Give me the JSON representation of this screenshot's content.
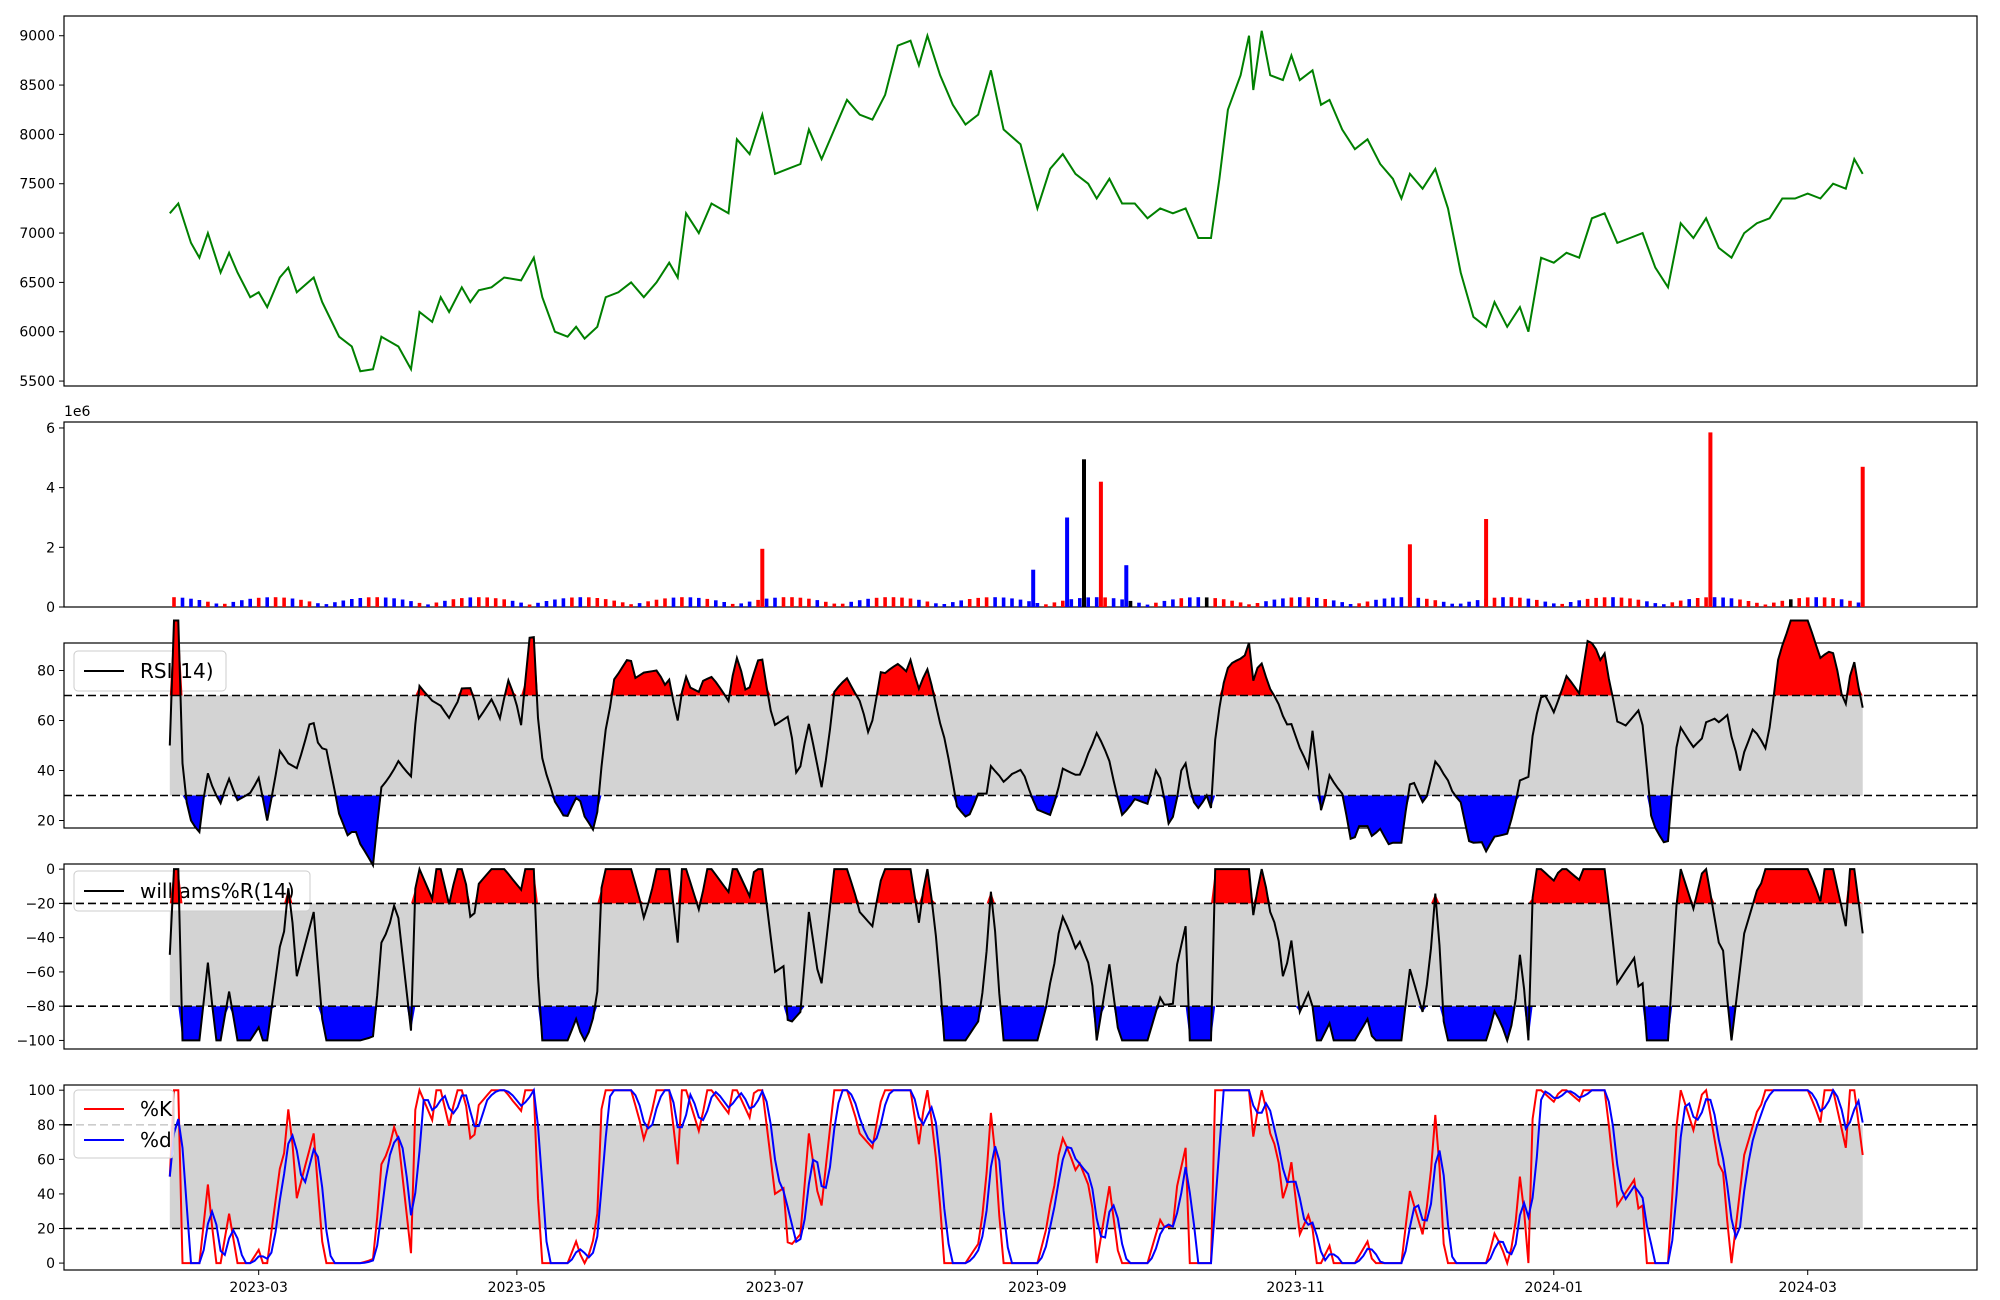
{
  "chart_data": [
    {
      "type": "line",
      "panel": "price",
      "color": "#008000",
      "ylim": [
        5450,
        9200
      ],
      "yticks": [
        5500,
        6000,
        6500,
        7000,
        7500,
        8000,
        8500,
        9000
      ],
      "ytick_labels": [
        "5500",
        "6000",
        "6500",
        "7000",
        "7500",
        "8000",
        "8500",
        "9000"
      ],
      "series": [
        {
          "points": [
            [
              "2023-02-08",
              7200
            ],
            [
              "2023-02-10",
              7300
            ],
            [
              "2023-02-13",
              6900
            ],
            [
              "2023-02-15",
              6750
            ],
            [
              "2023-02-17",
              7000
            ],
            [
              "2023-02-20",
              6600
            ],
            [
              "2023-02-22",
              6800
            ],
            [
              "2023-02-24",
              6600
            ],
            [
              "2023-02-27",
              6350
            ],
            [
              "2023-03-01",
              6400
            ],
            [
              "2023-03-03",
              6250
            ],
            [
              "2023-03-06",
              6550
            ],
            [
              "2023-03-08",
              6650
            ],
            [
              "2023-03-10",
              6400
            ],
            [
              "2023-03-14",
              6550
            ],
            [
              "2023-03-16",
              6300
            ],
            [
              "2023-03-20",
              5950
            ],
            [
              "2023-03-23",
              5850
            ],
            [
              "2023-03-25",
              5600
            ],
            [
              "2023-03-28",
              5620
            ],
            [
              "2023-03-30",
              5950
            ],
            [
              "2023-04-03",
              5850
            ],
            [
              "2023-04-06",
              5620
            ],
            [
              "2023-04-08",
              6200
            ],
            [
              "2023-04-11",
              6100
            ],
            [
              "2023-04-13",
              6350
            ],
            [
              "2023-04-15",
              6200
            ],
            [
              "2023-04-18",
              6450
            ],
            [
              "2023-04-20",
              6300
            ],
            [
              "2023-04-22",
              6420
            ],
            [
              "2023-04-25",
              6450
            ],
            [
              "2023-04-28",
              6550
            ],
            [
              "2023-05-02",
              6520
            ],
            [
              "2023-05-05",
              6750
            ],
            [
              "2023-05-07",
              6350
            ],
            [
              "2023-05-10",
              6000
            ],
            [
              "2023-05-13",
              5950
            ],
            [
              "2023-05-15",
              6050
            ],
            [
              "2023-05-17",
              5930
            ],
            [
              "2023-05-20",
              6050
            ],
            [
              "2023-05-22",
              6350
            ],
            [
              "2023-05-25",
              6400
            ],
            [
              "2023-05-28",
              6500
            ],
            [
              "2023-05-31",
              6350
            ],
            [
              "2023-06-03",
              6500
            ],
            [
              "2023-06-06",
              6700
            ],
            [
              "2023-06-08",
              6550
            ],
            [
              "2023-06-10",
              7200
            ],
            [
              "2023-06-13",
              7000
            ],
            [
              "2023-06-16",
              7300
            ],
            [
              "2023-06-20",
              7200
            ],
            [
              "2023-06-22",
              7950
            ],
            [
              "2023-06-25",
              7800
            ],
            [
              "2023-06-28",
              8200
            ],
            [
              "2023-07-01",
              7600
            ],
            [
              "2023-07-04",
              7650
            ],
            [
              "2023-07-07",
              7700
            ],
            [
              "2023-07-09",
              8050
            ],
            [
              "2023-07-12",
              7750
            ],
            [
              "2023-07-15",
              8050
            ],
            [
              "2023-07-18",
              8350
            ],
            [
              "2023-07-21",
              8200
            ],
            [
              "2023-07-24",
              8150
            ],
            [
              "2023-07-27",
              8400
            ],
            [
              "2023-07-30",
              8900
            ],
            [
              "2023-08-02",
              8950
            ],
            [
              "2023-08-04",
              8700
            ],
            [
              "2023-08-06",
              9000
            ],
            [
              "2023-08-09",
              8600
            ],
            [
              "2023-08-12",
              8300
            ],
            [
              "2023-08-15",
              8100
            ],
            [
              "2023-08-18",
              8200
            ],
            [
              "2023-08-21",
              8650
            ],
            [
              "2023-08-24",
              8050
            ],
            [
              "2023-08-28",
              7900
            ],
            [
              "2023-09-01",
              7250
            ],
            [
              "2023-09-04",
              7650
            ],
            [
              "2023-09-07",
              7800
            ],
            [
              "2023-09-10",
              7600
            ],
            [
              "2023-09-13",
              7500
            ],
            [
              "2023-09-15",
              7350
            ],
            [
              "2023-09-18",
              7550
            ],
            [
              "2023-09-21",
              7300
            ],
            [
              "2023-09-24",
              7300
            ],
            [
              "2023-09-27",
              7150
            ],
            [
              "2023-09-30",
              7250
            ],
            [
              "2023-10-03",
              7200
            ],
            [
              "2023-10-06",
              7250
            ],
            [
              "2023-10-09",
              6950
            ],
            [
              "2023-10-12",
              6950
            ],
            [
              "2023-10-14",
              7550
            ],
            [
              "2023-10-16",
              8250
            ],
            [
              "2023-10-19",
              8600
            ],
            [
              "2023-10-21",
              9000
            ],
            [
              "2023-10-22",
              8450
            ],
            [
              "2023-10-24",
              9050
            ],
            [
              "2023-10-26",
              8600
            ],
            [
              "2023-10-29",
              8550
            ],
            [
              "2023-10-31",
              8800
            ],
            [
              "2023-11-02",
              8550
            ],
            [
              "2023-11-05",
              8650
            ],
            [
              "2023-11-07",
              8300
            ],
            [
              "2023-11-09",
              8350
            ],
            [
              "2023-11-12",
              8050
            ],
            [
              "2023-11-15",
              7850
            ],
            [
              "2023-11-18",
              7950
            ],
            [
              "2023-11-21",
              7700
            ],
            [
              "2023-11-24",
              7550
            ],
            [
              "2023-11-26",
              7350
            ],
            [
              "2023-11-28",
              7600
            ],
            [
              "2023-12-01",
              7450
            ],
            [
              "2023-12-04",
              7650
            ],
            [
              "2023-12-07",
              7250
            ],
            [
              "2023-12-10",
              6600
            ],
            [
              "2023-12-13",
              6150
            ],
            [
              "2023-12-16",
              6050
            ],
            [
              "2023-12-18",
              6300
            ],
            [
              "2023-12-21",
              6050
            ],
            [
              "2023-12-24",
              6250
            ],
            [
              "2023-12-26",
              6000
            ],
            [
              "2023-12-29",
              6750
            ],
            [
              "2024-01-01",
              6700
            ],
            [
              "2024-01-04",
              6800
            ],
            [
              "2024-01-07",
              6750
            ],
            [
              "2024-01-10",
              7150
            ],
            [
              "2024-01-13",
              7200
            ],
            [
              "2024-01-16",
              6900
            ],
            [
              "2024-01-19",
              6950
            ],
            [
              "2024-01-22",
              7000
            ],
            [
              "2024-01-25",
              6650
            ],
            [
              "2024-01-28",
              6450
            ],
            [
              "2024-01-31",
              7100
            ],
            [
              "2024-02-03",
              6950
            ],
            [
              "2024-02-06",
              7150
            ],
            [
              "2024-02-09",
              6850
            ],
            [
              "2024-02-12",
              6750
            ],
            [
              "2024-02-15",
              7000
            ],
            [
              "2024-02-18",
              7100
            ],
            [
              "2024-02-21",
              7150
            ],
            [
              "2024-02-24",
              7350
            ],
            [
              "2024-02-27",
              7350
            ],
            [
              "2024-03-01",
              7400
            ],
            [
              "2024-03-04",
              7350
            ],
            [
              "2024-03-07",
              7500
            ],
            [
              "2024-03-10",
              7450
            ],
            [
              "2024-03-12",
              7750
            ],
            [
              "2024-03-14",
              7600
            ]
          ]
        }
      ]
    },
    {
      "type": "bar",
      "panel": "volume",
      "scale_label": "1e6",
      "ylim": [
        0,
        6.2
      ],
      "yticks": [
        0,
        2,
        4,
        6
      ],
      "ytick_labels": [
        "0",
        "2",
        "4",
        "6"
      ],
      "colors": {
        "up": "#ff0000",
        "down": "#0000ff",
        "flat": "#000000"
      }
    },
    {
      "type": "line",
      "panel": "rsi",
      "legend": "RSI(14)",
      "ylim": [
        17,
        91
      ],
      "yticks": [
        20,
        40,
        60,
        80
      ],
      "ytick_labels": [
        "20",
        "40",
        "60",
        "80"
      ],
      "band": [
        30,
        70
      ],
      "colors": {
        "line": "#000000",
        "band": "#d3d3d3",
        "above": "#ff0000",
        "below": "#0000ff"
      }
    },
    {
      "type": "line",
      "panel": "williams",
      "legend": "williams%R(14)",
      "ylim": [
        -105,
        3
      ],
      "yticks": [
        -100,
        -80,
        -60,
        -40,
        -20,
        0
      ],
      "ytick_labels": [
        "−100",
        "−80",
        "−60",
        "−40",
        "−20",
        "0"
      ],
      "band": [
        -80,
        -20
      ],
      "colors": {
        "line": "#000000",
        "band": "#d3d3d3",
        "above": "#ff0000",
        "below": "#0000ff"
      }
    },
    {
      "type": "line",
      "panel": "stochastic",
      "legend": [
        "%K",
        "%d"
      ],
      "ylim": [
        -4,
        103
      ],
      "yticks": [
        0,
        20,
        40,
        60,
        80,
        100
      ],
      "ytick_labels": [
        "0",
        "20",
        "40",
        "60",
        "80",
        "100"
      ],
      "band": [
        20,
        80
      ],
      "colors": {
        "k": "#ff0000",
        "d": "#0000ff",
        "band": "#d3d3d3"
      }
    }
  ],
  "x_axis": {
    "range": [
      "2023-01-14",
      "2024-04-10"
    ],
    "ticks": [
      "2023-03",
      "2023-05",
      "2023-07",
      "2023-09",
      "2023-11",
      "2024-01",
      "2024-03"
    ]
  }
}
